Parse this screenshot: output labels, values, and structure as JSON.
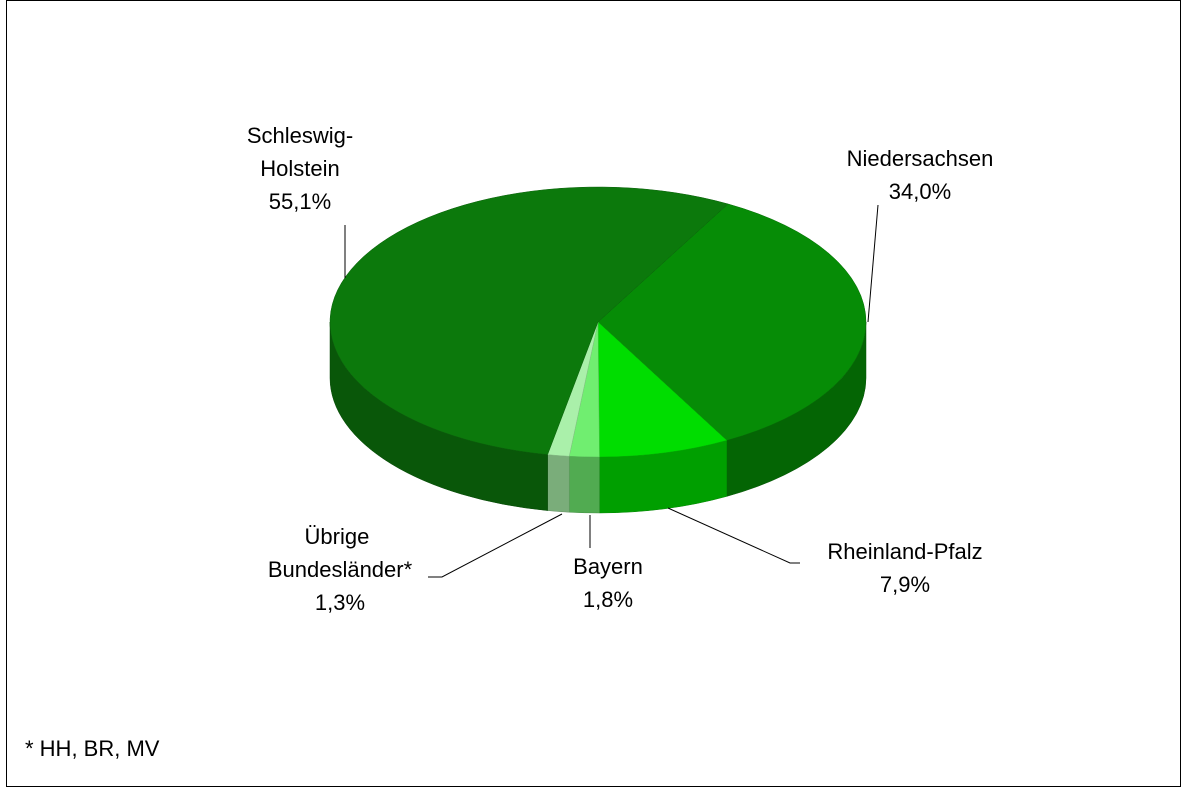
{
  "chart_data": {
    "type": "pie3d",
    "categories": [
      "Schleswig-Holstein",
      "Niedersachsen",
      "Rheinland-Pfalz",
      "Bayern",
      "Übrige Bundesländer*"
    ],
    "values": [
      55.1,
      34.0,
      7.9,
      1.8,
      1.3
    ],
    "value_labels": [
      "55,1%",
      "34,0%",
      "7,9%",
      "1,8%",
      "1,3%"
    ],
    "colors": [
      "#0c790c",
      "#068c06",
      "#00dd00",
      "#70ee70",
      "#aaf0aa"
    ],
    "note": "* HH, BR, MV"
  }
}
